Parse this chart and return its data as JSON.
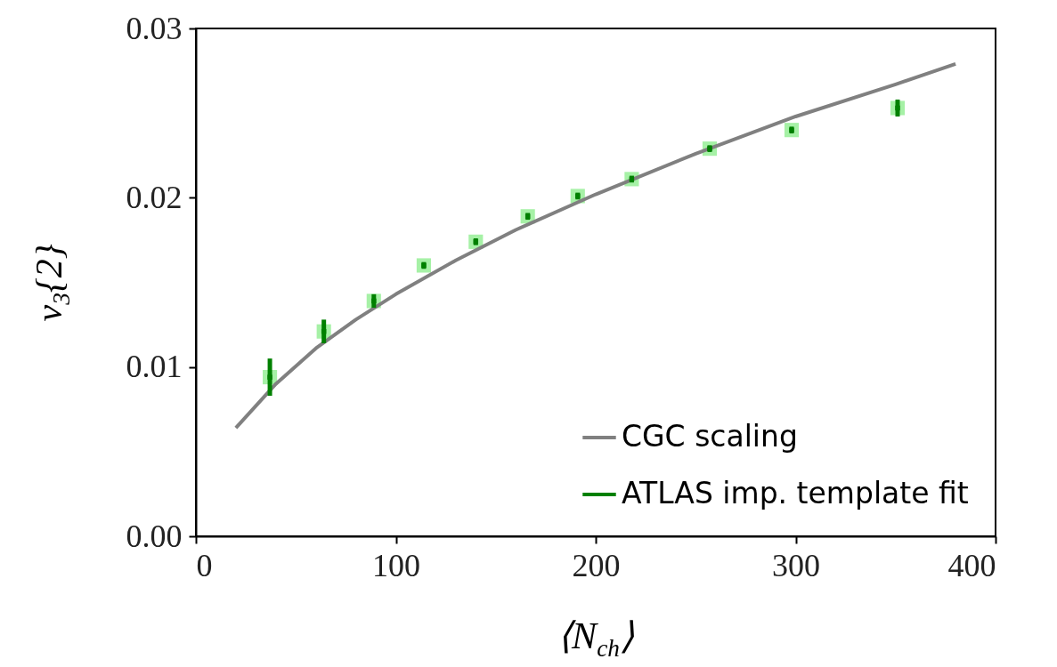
{
  "chart_data": {
    "type": "scatter",
    "xlabel": "⟨N$_{ch}$⟩",
    "ylabel": "v$_{3}${2}",
    "xlim": [
      0,
      400
    ],
    "ylim": [
      0,
      0.03
    ],
    "xticks": [
      0,
      100,
      200,
      300,
      400
    ],
    "yticks": [
      {
        "value": 0,
        "label": "0.00"
      },
      {
        "value": 0.01,
        "label": "0.01"
      },
      {
        "value": 0.02,
        "label": "0.02"
      },
      {
        "value": 0.03,
        "label": "0.03"
      }
    ],
    "grid": false,
    "legend": "bottom right",
    "series": [
      {
        "name": "CGC scaling",
        "type": "line",
        "color": "#808080",
        "marker": "none",
        "line_style": "solid",
        "x": [
          20,
          40,
          60,
          80,
          100,
          130,
          160,
          200,
          250,
          300,
          350,
          380
        ],
        "values": [
          0.0064,
          0.009,
          0.0111,
          0.0128,
          0.0143,
          0.0163,
          0.0181,
          0.0202,
          0.0226,
          0.0248,
          0.0267,
          0.0279
        ]
      },
      {
        "type": "scatter",
        "color": "#90ee90",
        "marker": "square",
        "x": [
          37,
          64,
          89,
          114,
          140,
          166,
          191,
          218,
          257,
          298,
          351
        ],
        "values": [
          0.0094,
          0.0121,
          0.0139,
          0.016,
          0.0174,
          0.0189,
          0.0201,
          0.0211,
          0.0229,
          0.024,
          0.0253
        ]
      },
      {
        "name": "ATLAS imp. template fit",
        "type": "scatter",
        "color": "#008000",
        "marker": "square",
        "x": [
          37,
          64,
          89,
          114,
          140,
          166,
          191,
          218,
          257,
          298,
          351
        ],
        "values": [
          0.0094,
          0.0121,
          0.0139,
          0.016,
          0.0174,
          0.0189,
          0.0201,
          0.0211,
          0.0229,
          0.024,
          0.0253
        ],
        "errors": [
          [
            0.0083,
            0.0105
          ],
          [
            0.0114,
            0.0128
          ],
          [
            0.0135,
            0.0143
          ],
          [
            0.0158,
            0.0162
          ],
          [
            0.0172,
            0.0176
          ],
          [
            0.0187,
            0.0191
          ],
          [
            0.0199,
            0.0203
          ],
          [
            0.0209,
            0.0213
          ],
          [
            0.0227,
            0.0231
          ],
          [
            0.0238,
            0.0242
          ],
          [
            0.0248,
            0.0258
          ]
        ]
      }
    ]
  }
}
